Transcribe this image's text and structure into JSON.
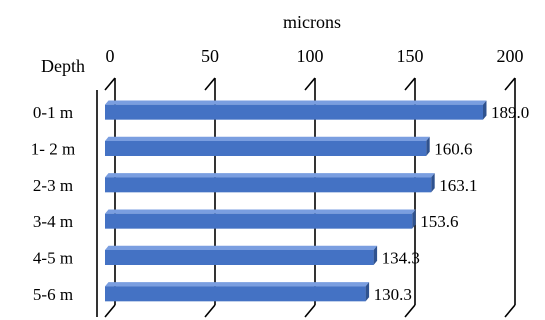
{
  "chart_data": {
    "type": "bar",
    "orientation": "horizontal",
    "render_3d": true,
    "title": "",
    "xlabel": "microns",
    "ylabel": "Depth",
    "xlim": [
      0,
      200
    ],
    "x_ticks": [
      0,
      50,
      100,
      150,
      200
    ],
    "x_axis_position": "top",
    "grid": true,
    "legend": "none",
    "categories": [
      "0-1 m",
      "1- 2 m",
      "2-3 m",
      "3-4 m",
      "4-5 m",
      "5-6 m"
    ],
    "values": [
      189.0,
      160.6,
      163.1,
      153.6,
      134.3,
      130.3
    ],
    "data_labels": [
      "189.0",
      "160.6",
      "163.1",
      "153.6",
      "134.3",
      "130.3"
    ],
    "colors": {
      "bar_front": "#4472c4",
      "bar_top": "#7a9ee0",
      "bar_side": "#2f528f",
      "grid": "#000000",
      "text": "#000000"
    }
  }
}
